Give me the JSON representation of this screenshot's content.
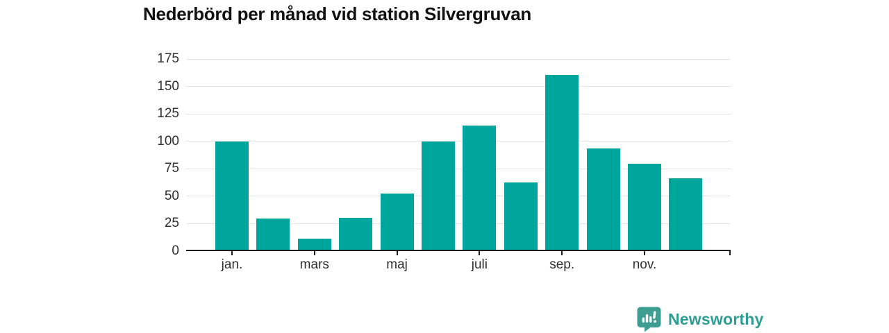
{
  "chart_data": {
    "type": "bar",
    "title": "Nederbörd per månad vid station Silvergruvan",
    "bar_count": 12,
    "values": [
      99,
      29,
      11,
      30,
      52,
      99,
      114,
      62,
      160,
      93,
      79,
      66
    ],
    "x_ticks": [
      {
        "label": "jan.",
        "bar_index": 0
      },
      {
        "label": "mars",
        "bar_index": 2
      },
      {
        "label": "maj",
        "bar_index": 4
      },
      {
        "label": "juli",
        "bar_index": 6
      },
      {
        "label": "sep.",
        "bar_index": 8
      },
      {
        "label": "nov.",
        "bar_index": 10
      }
    ],
    "y_ticks": [
      0,
      25,
      50,
      75,
      100,
      125,
      150,
      175
    ],
    "ylim": [
      0,
      175
    ],
    "grid": "horizontal",
    "legend": "none",
    "bar_color": "#00a69c",
    "axis_color": "#1c1c1c",
    "gridline_color": "#e4e4e4",
    "tick_label_color": "#2f2f2f",
    "title_color": "#111111"
  },
  "branding": {
    "name": "Newsworthy",
    "icon": "speech-bubble-with-bar-chart",
    "icon_color": "#3e9e92",
    "icon_glyph_color": "#ffffff",
    "text_color": "#2e9d92"
  }
}
